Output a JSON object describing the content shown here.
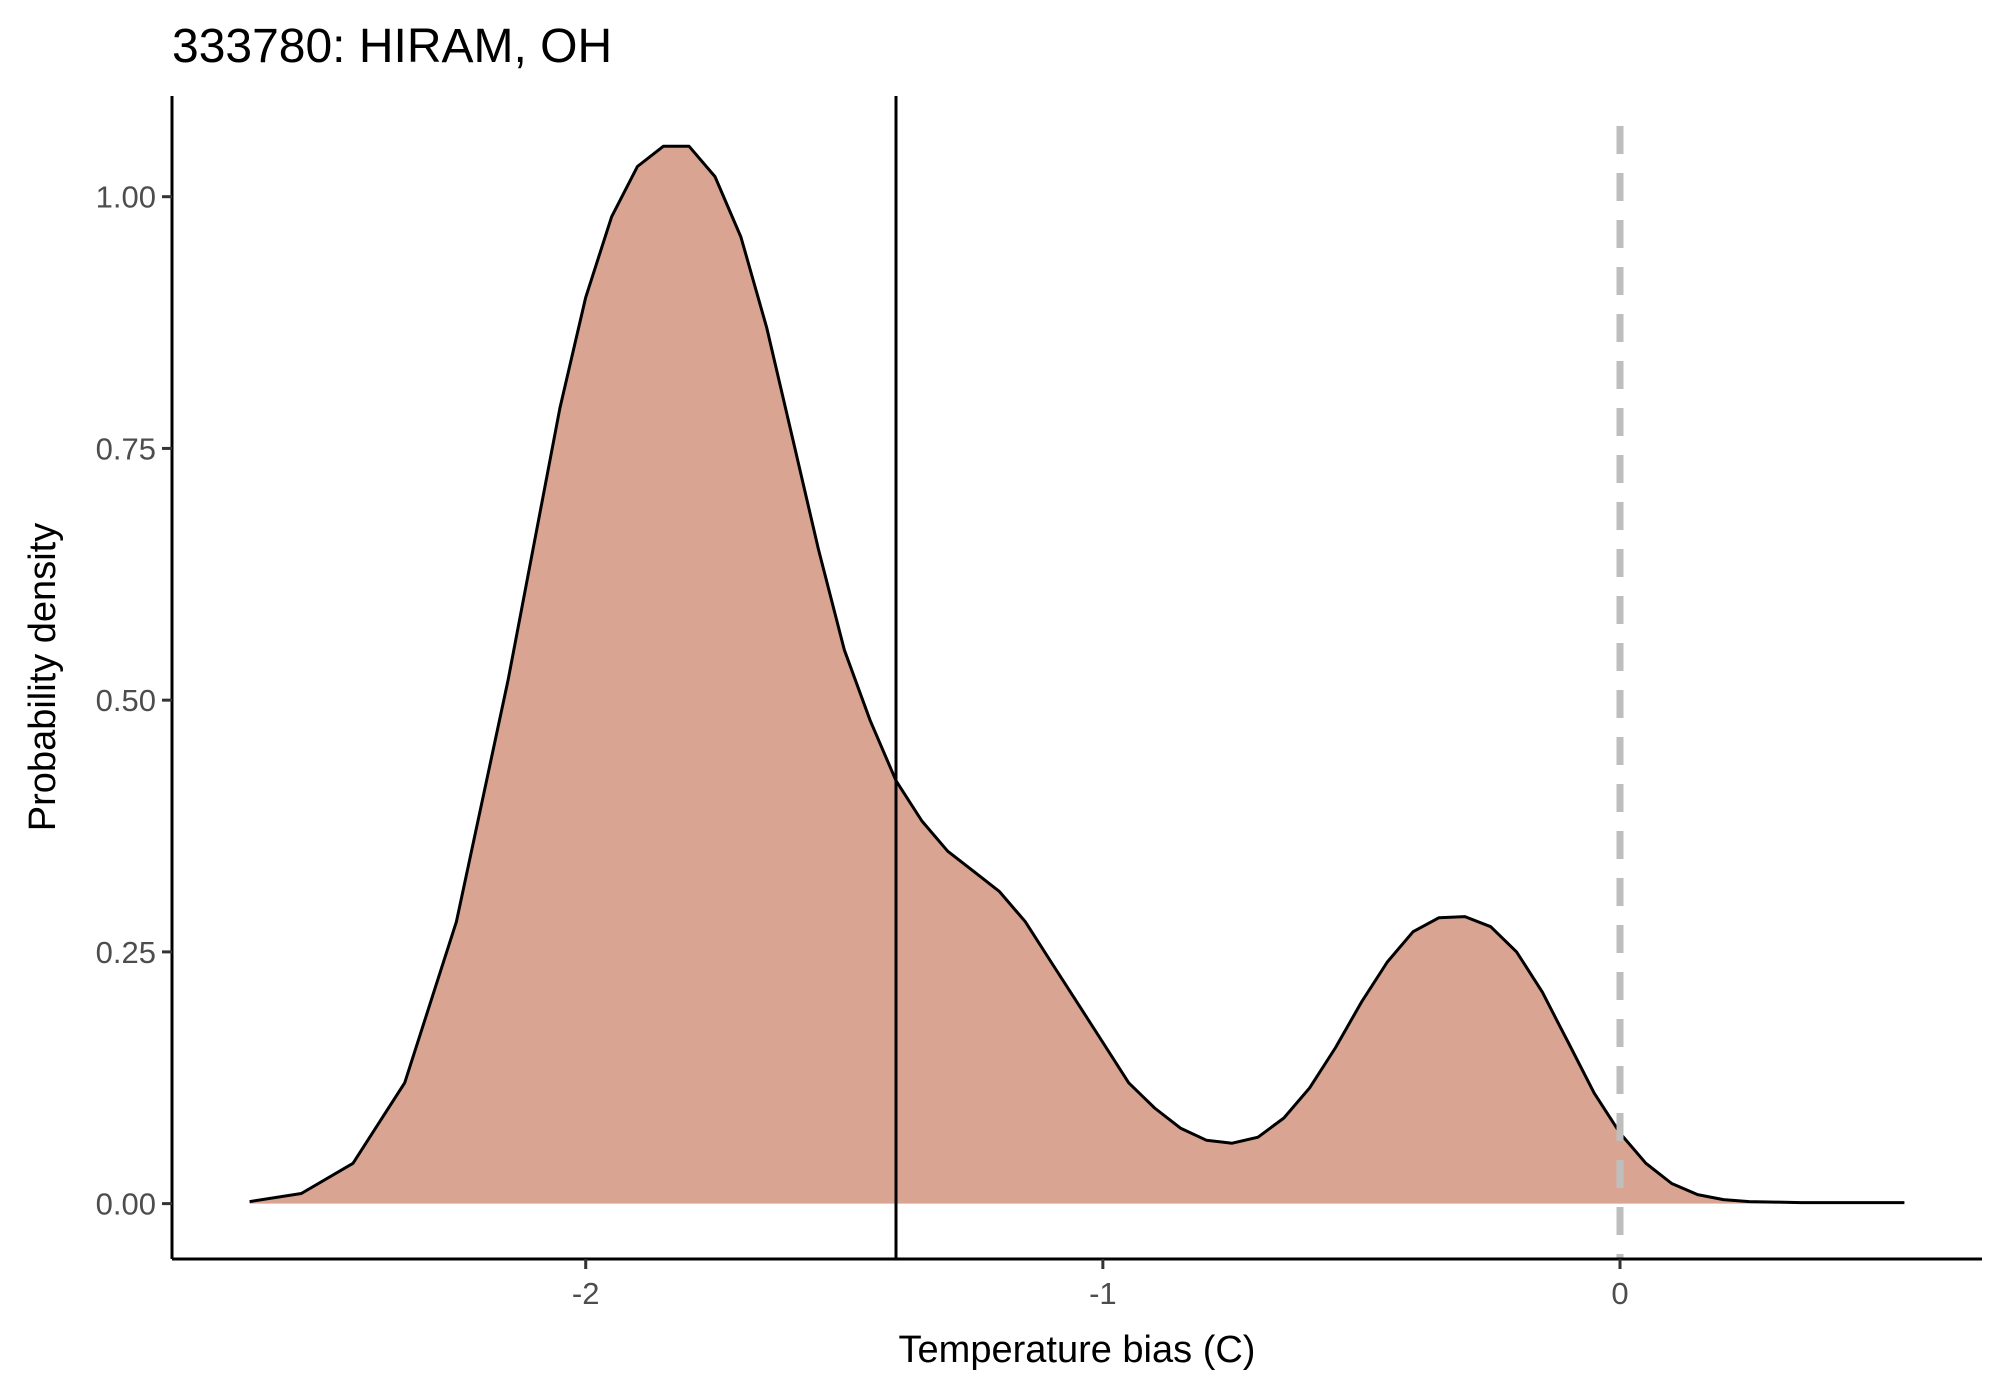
{
  "chart_data": {
    "type": "area",
    "title": "333780: HIRAM, OH",
    "xlabel": "Temperature bias (C)",
    "ylabel": "Probability density",
    "xlim": [
      -2.8,
      0.7
    ],
    "ylim": [
      -0.055,
      1.1
    ],
    "x_ticks": [
      -2,
      -1,
      0
    ],
    "x_tick_labels": [
      "-2",
      "-1",
      "0"
    ],
    "y_ticks": [
      0,
      0.25,
      0.5,
      0.75,
      1.0
    ],
    "y_tick_labels": [
      "0.00",
      "0.25",
      "0.50",
      "0.75",
      "1.00"
    ],
    "grid": false,
    "fill_color": "#d9a592",
    "line_color": "#000000",
    "series": [
      {
        "x": [
          -2.65,
          -2.55,
          -2.45,
          -2.35,
          -2.25,
          -2.15,
          -2.05,
          -2.0,
          -1.95,
          -1.9,
          -1.85,
          -1.8,
          -1.75,
          -1.7,
          -1.65,
          -1.6,
          -1.55,
          -1.5,
          -1.45,
          -1.4,
          -1.35,
          -1.3,
          -1.25,
          -1.2,
          -1.15,
          -1.1,
          -1.05,
          -1.0,
          -0.95,
          -0.9,
          -0.85,
          -0.8,
          -0.75,
          -0.7,
          -0.65,
          -0.6,
          -0.55,
          -0.5,
          -0.45,
          -0.4,
          -0.35,
          -0.3,
          -0.25,
          -0.2,
          -0.15,
          -0.12,
          -0.1,
          -0.05,
          0.0,
          0.05,
          0.1,
          0.15,
          0.2,
          0.25,
          0.3,
          0.35,
          0.4,
          0.45,
          0.5,
          0.55
        ],
        "y": [
          0.002,
          0.01,
          0.04,
          0.12,
          0.28,
          0.52,
          0.79,
          0.9,
          0.98,
          1.03,
          1.05,
          1.05,
          1.02,
          0.96,
          0.87,
          0.76,
          0.65,
          0.55,
          0.48,
          0.42,
          0.38,
          0.35,
          0.33,
          0.31,
          0.28,
          0.24,
          0.2,
          0.16,
          0.12,
          0.095,
          0.075,
          0.063,
          0.06,
          0.066,
          0.085,
          0.115,
          0.155,
          0.2,
          0.24,
          0.27,
          0.284,
          0.285,
          0.275,
          0.25,
          0.21,
          0.18,
          0.16,
          0.11,
          0.07,
          0.04,
          0.02,
          0.009,
          0.004,
          0.002,
          0.0015,
          0.001,
          0.001,
          0.001,
          0.001,
          0.001
        ]
      }
    ],
    "vlines": [
      {
        "x": -1.4,
        "style": "solid",
        "color": "#000000"
      },
      {
        "x": 0.0,
        "style": "dashed",
        "color": "#bebebe"
      }
    ]
  }
}
